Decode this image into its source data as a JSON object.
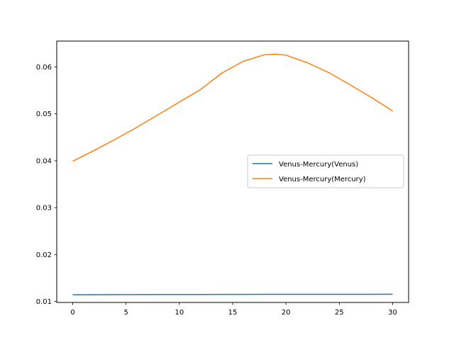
{
  "chart_data": {
    "type": "line",
    "title": "",
    "xlabel": "",
    "ylabel": "",
    "xlim": [
      -1.5,
      31.5
    ],
    "ylim": [
      0.0098,
      0.0655
    ],
    "xticks": [
      0,
      5,
      10,
      15,
      20,
      25,
      30
    ],
    "yticks": [
      0.01,
      0.02,
      0.03,
      0.04,
      0.05,
      0.06
    ],
    "ytick_labels": [
      "0.01",
      "0.02",
      "0.03",
      "0.04",
      "0.05",
      "0.06"
    ],
    "xtick_labels": [
      "0",
      "5",
      "10",
      "15",
      "20",
      "25",
      "30"
    ],
    "grid": false,
    "legend_position": "center-right",
    "series": [
      {
        "name": "Venus-Mercury(Venus)",
        "color": "#1f77b4",
        "x": [
          0,
          2,
          4,
          6,
          8,
          10,
          12,
          14,
          16,
          18,
          20,
          22,
          24,
          26,
          28,
          30
        ],
        "y": [
          0.01145,
          0.01146,
          0.01147,
          0.01148,
          0.01149,
          0.0115,
          0.01151,
          0.01152,
          0.01152,
          0.01153,
          0.01153,
          0.01153,
          0.01154,
          0.01154,
          0.01154,
          0.01155
        ]
      },
      {
        "name": "Venus-Mercury(Mercury)",
        "color": "#ff7f0e",
        "x": [
          0,
          2,
          4,
          6,
          8,
          10,
          12,
          14,
          16,
          18,
          19,
          20,
          22,
          24,
          26,
          28,
          30
        ],
        "y": [
          0.0399,
          0.0422,
          0.0446,
          0.0471,
          0.0498,
          0.0525,
          0.0552,
          0.0587,
          0.0612,
          0.0626,
          0.0627,
          0.0625,
          0.0609,
          0.0588,
          0.0562,
          0.0535,
          0.0506
        ]
      }
    ]
  }
}
